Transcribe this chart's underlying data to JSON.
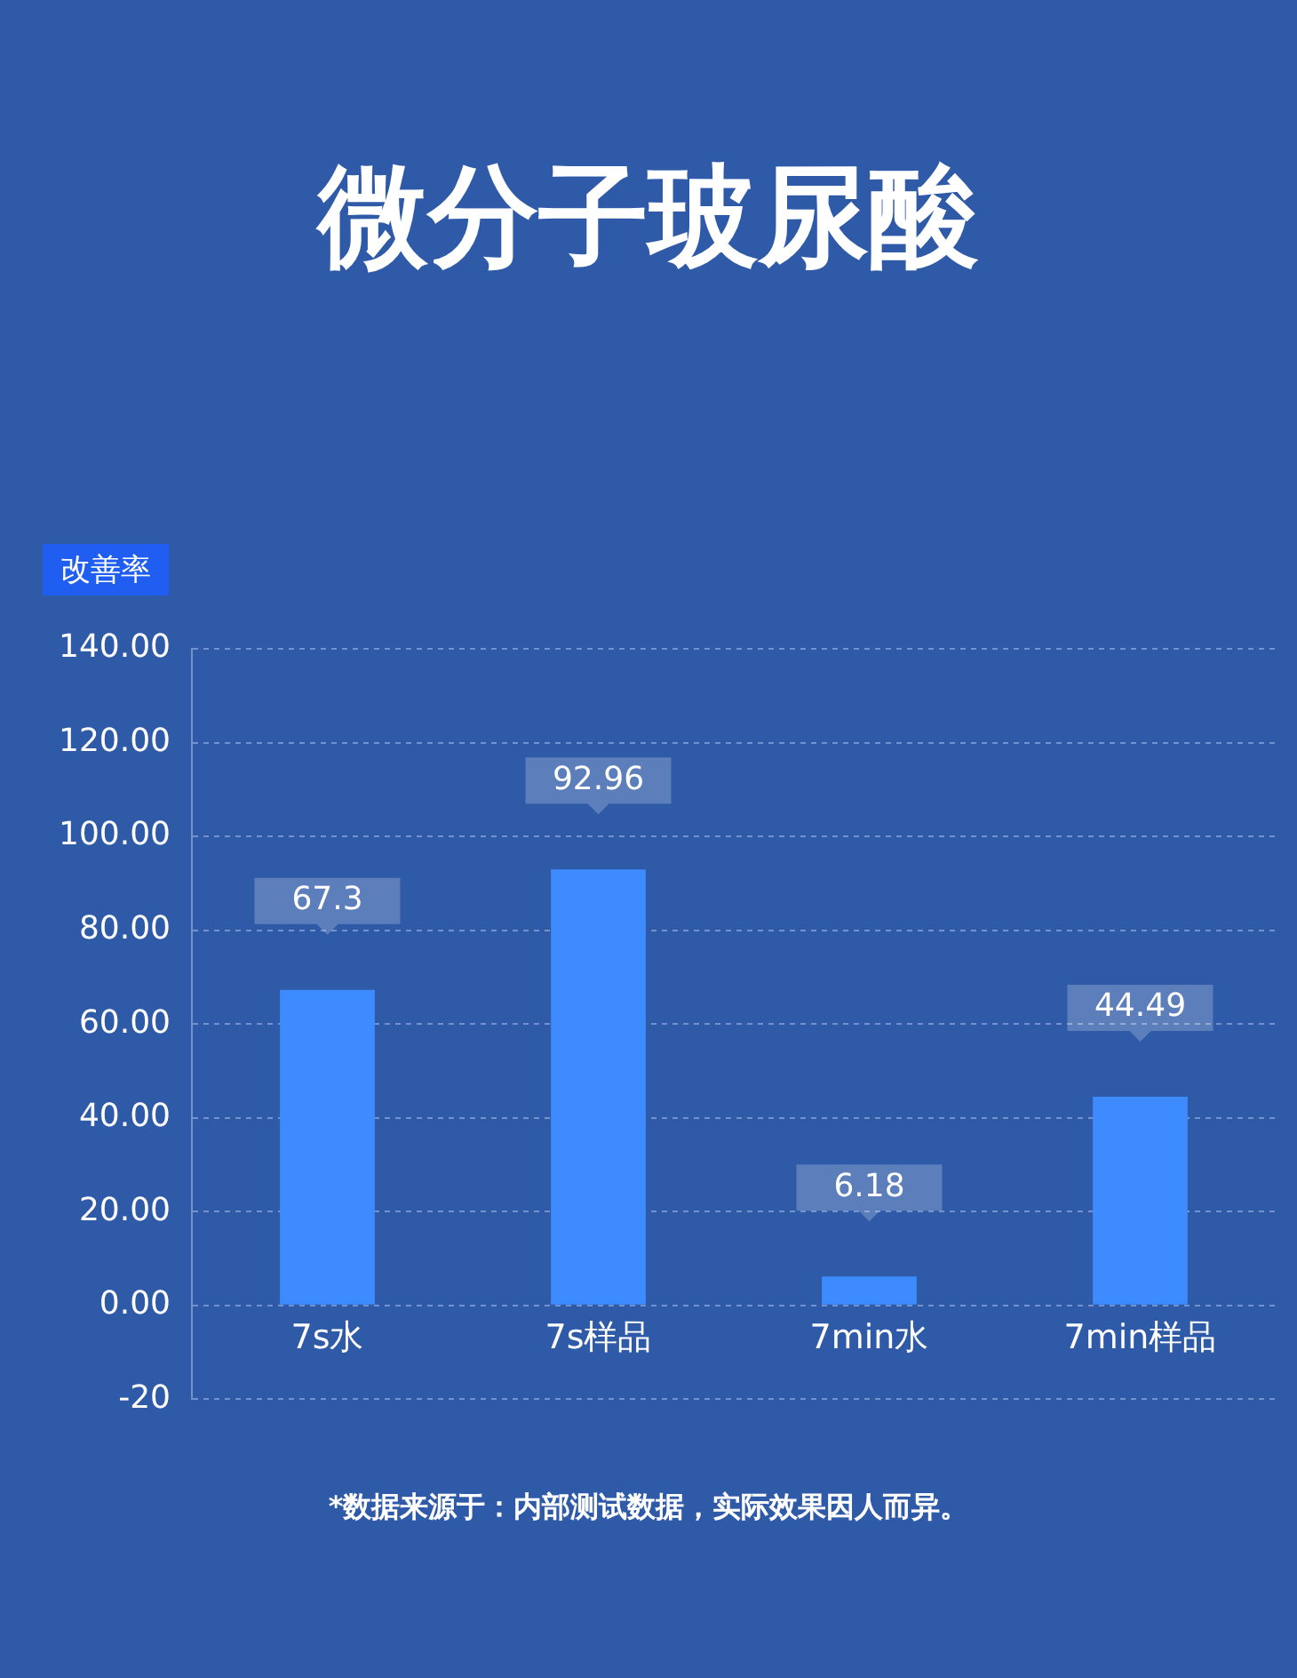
{
  "chart_data": {
    "type": "bar",
    "title": "微分子玻尿酸",
    "ylabel": "改善率",
    "categories": [
      "7s水",
      "7s样品",
      "7min水",
      "7min样品"
    ],
    "values": [
      67.3,
      92.96,
      6.18,
      44.49
    ],
    "data_labels": true,
    "color": "#3d8bff",
    "ylim": [
      -20,
      140
    ],
    "yticks": [
      {
        "value": -20,
        "label": "-20"
      },
      {
        "value": 0,
        "label": "0.00"
      },
      {
        "value": 20,
        "label": "20.00"
      },
      {
        "value": 40,
        "label": "40.00"
      },
      {
        "value": 60,
        "label": "60.00"
      },
      {
        "value": 80,
        "label": "80.00"
      },
      {
        "value": 100,
        "label": "100.00"
      },
      {
        "value": 120,
        "label": "120.00"
      },
      {
        "value": 140,
        "label": "140.00"
      }
    ],
    "grid": "y",
    "legend": false,
    "annotations": [
      "*数据来源于：内部测试数据，实际效果因人而异。"
    ]
  }
}
